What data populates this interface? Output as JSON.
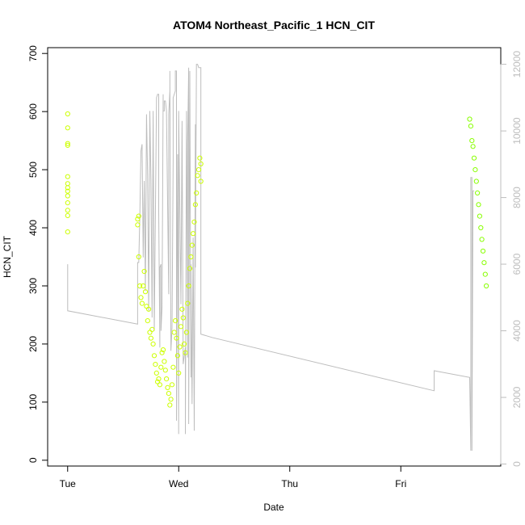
{
  "chart_data": {
    "type": "scatter",
    "title": "ATOM4 Northeast_Pacific_1 HCN_CIT",
    "xlabel": "Date",
    "ylabel": "HCN_CIT",
    "x_ticks": [
      "Tue",
      "Wed",
      "Thu",
      "Fri"
    ],
    "x_tick_days": [
      0,
      1,
      2,
      3
    ],
    "xlim": [
      -0.18,
      3.9
    ],
    "ylim": [
      -10,
      710
    ],
    "y_ticks": [
      0,
      100,
      200,
      300,
      400,
      500,
      600,
      700
    ],
    "y2lim": [
      -60,
      12500
    ],
    "y2_ticks": [
      0,
      2000,
      4000,
      6000,
      8000,
      10000,
      12000
    ],
    "colors": {
      "points": "#ccff00",
      "points_late": "#88ff00",
      "line": "#bdbdbd",
      "axis": "#000000",
      "axis_right": "#bdbdbd"
    },
    "series": [
      {
        "type": "line",
        "axis": "right",
        "points": [
          [
            0.0,
            6000
          ],
          [
            0.0,
            4600
          ],
          [
            0.63,
            4200
          ],
          [
            0.63,
            6050
          ],
          [
            0.64,
            6050
          ],
          [
            0.65,
            7400
          ],
          [
            0.66,
            9400
          ],
          [
            0.67,
            9600
          ],
          [
            0.68,
            6200
          ],
          [
            0.69,
            8500
          ],
          [
            0.7,
            5200
          ],
          [
            0.71,
            10500
          ],
          [
            0.72,
            8600
          ],
          [
            0.73,
            4600
          ],
          [
            0.74,
            10600
          ],
          [
            0.75,
            8500
          ],
          [
            0.76,
            4400
          ],
          [
            0.77,
            10600
          ],
          [
            0.78,
            4000
          ],
          [
            0.8,
            11000
          ],
          [
            0.81,
            11100
          ],
          [
            0.82,
            11100
          ],
          [
            0.82,
            7600
          ],
          [
            0.83,
            3500
          ],
          [
            0.83,
            5900
          ],
          [
            0.84,
            6000
          ],
          [
            0.84,
            4000
          ],
          [
            0.85,
            4700
          ],
          [
            0.86,
            11100
          ],
          [
            0.86,
            10600
          ],
          [
            0.87,
            10600
          ],
          [
            0.87,
            10900
          ],
          [
            0.88,
            10900
          ],
          [
            0.89,
            10600
          ],
          [
            0.91,
            5100
          ],
          [
            0.91,
            10500
          ],
          [
            0.92,
            11200
          ],
          [
            0.92,
            11800
          ],
          [
            0.93,
            3400
          ],
          [
            0.94,
            4100
          ],
          [
            0.95,
            9200
          ],
          [
            0.95,
            11000
          ],
          [
            0.97,
            11200
          ],
          [
            0.97,
            11800
          ],
          [
            0.98,
            11800
          ],
          [
            0.98,
            1300
          ],
          [
            0.99,
            9300
          ],
          [
            1.0,
            900
          ],
          [
            1.0,
            10600
          ],
          [
            1.02,
            4800
          ],
          [
            1.03,
            10300
          ],
          [
            1.04,
            3000
          ],
          [
            1.06,
            3500
          ],
          [
            1.06,
            900
          ],
          [
            1.07,
            10600
          ],
          [
            1.08,
            3200
          ],
          [
            1.08,
            9600
          ],
          [
            1.09,
            11900
          ],
          [
            1.09,
            1200
          ],
          [
            1.1,
            11800
          ],
          [
            1.1,
            11800
          ],
          [
            1.11,
            2600
          ],
          [
            1.11,
            6000
          ],
          [
            1.12,
            1800
          ],
          [
            1.13,
            6800
          ],
          [
            1.14,
            1000
          ],
          [
            1.15,
            10200
          ],
          [
            1.15,
            5900
          ],
          [
            1.16,
            12000
          ],
          [
            1.17,
            12000
          ],
          [
            1.18,
            11900
          ],
          [
            1.19,
            11900
          ],
          [
            1.2,
            11900
          ],
          [
            1.2,
            3900
          ],
          [
            1.3,
            3800
          ],
          [
            3.3,
            2200
          ],
          [
            3.3,
            2200
          ],
          [
            3.3,
            2800
          ],
          [
            3.62,
            2600
          ],
          [
            3.63,
            400
          ],
          [
            3.63,
            8600
          ],
          [
            3.64,
            8600
          ],
          [
            3.64,
            400
          ],
          [
            3.65,
            8200
          ],
          [
            3.66,
            8200
          ]
        ]
      },
      {
        "type": "scatter",
        "axis": "left",
        "points": [
          [
            0.0,
            596
          ],
          [
            0.0,
            572
          ],
          [
            0.0,
            545
          ],
          [
            0.0,
            542
          ],
          [
            0.0,
            488
          ],
          [
            0.0,
            476
          ],
          [
            0.0,
            469
          ],
          [
            0.0,
            463
          ],
          [
            0.0,
            455
          ],
          [
            0.0,
            443
          ],
          [
            0.0,
            430
          ],
          [
            0.0,
            421
          ],
          [
            0.0,
            393
          ],
          [
            0.63,
            415
          ],
          [
            0.63,
            405
          ],
          [
            0.64,
            420
          ],
          [
            0.64,
            350
          ],
          [
            0.65,
            300
          ],
          [
            0.66,
            280
          ],
          [
            0.67,
            270
          ],
          [
            0.68,
            300
          ],
          [
            0.69,
            325
          ],
          [
            0.7,
            290
          ],
          [
            0.71,
            265
          ],
          [
            0.72,
            240
          ],
          [
            0.73,
            260
          ],
          [
            0.74,
            220
          ],
          [
            0.75,
            210
          ],
          [
            0.76,
            225
          ],
          [
            0.77,
            200
          ],
          [
            0.78,
            180
          ],
          [
            0.79,
            165
          ],
          [
            0.8,
            150
          ],
          [
            0.81,
            135
          ],
          [
            0.82,
            140
          ],
          [
            0.83,
            130
          ],
          [
            0.84,
            160
          ],
          [
            0.85,
            185
          ],
          [
            0.86,
            190
          ],
          [
            0.87,
            170
          ],
          [
            0.88,
            155
          ],
          [
            0.89,
            140
          ],
          [
            0.9,
            125
          ],
          [
            0.91,
            115
          ],
          [
            0.92,
            95
          ],
          [
            0.93,
            105
          ],
          [
            0.94,
            130
          ],
          [
            0.95,
            160
          ],
          [
            0.96,
            220
          ],
          [
            0.97,
            240
          ],
          [
            0.98,
            210
          ],
          [
            0.99,
            180
          ],
          [
            1.0,
            150
          ],
          [
            1.01,
            195
          ],
          [
            1.02,
            230
          ],
          [
            1.03,
            260
          ],
          [
            1.04,
            245
          ],
          [
            1.05,
            200
          ],
          [
            1.06,
            185
          ],
          [
            1.07,
            220
          ],
          [
            1.08,
            270
          ],
          [
            1.09,
            300
          ],
          [
            1.1,
            330
          ],
          [
            1.11,
            350
          ],
          [
            1.12,
            370
          ],
          [
            1.13,
            390
          ],
          [
            1.14,
            410
          ],
          [
            1.15,
            440
          ],
          [
            1.16,
            460
          ],
          [
            1.17,
            490
          ],
          [
            1.18,
            500
          ],
          [
            1.19,
            520
          ],
          [
            1.2,
            510
          ],
          [
            1.2,
            480
          ],
          [
            3.62,
            587
          ],
          [
            3.63,
            575
          ],
          [
            3.64,
            550
          ],
          [
            3.65,
            540
          ],
          [
            3.66,
            520
          ],
          [
            3.67,
            500
          ],
          [
            3.68,
            480
          ],
          [
            3.69,
            460
          ],
          [
            3.7,
            440
          ],
          [
            3.71,
            420
          ],
          [
            3.72,
            400
          ],
          [
            3.73,
            380
          ],
          [
            3.74,
            360
          ],
          [
            3.75,
            340
          ],
          [
            3.76,
            320
          ],
          [
            3.77,
            300
          ]
        ]
      }
    ]
  }
}
